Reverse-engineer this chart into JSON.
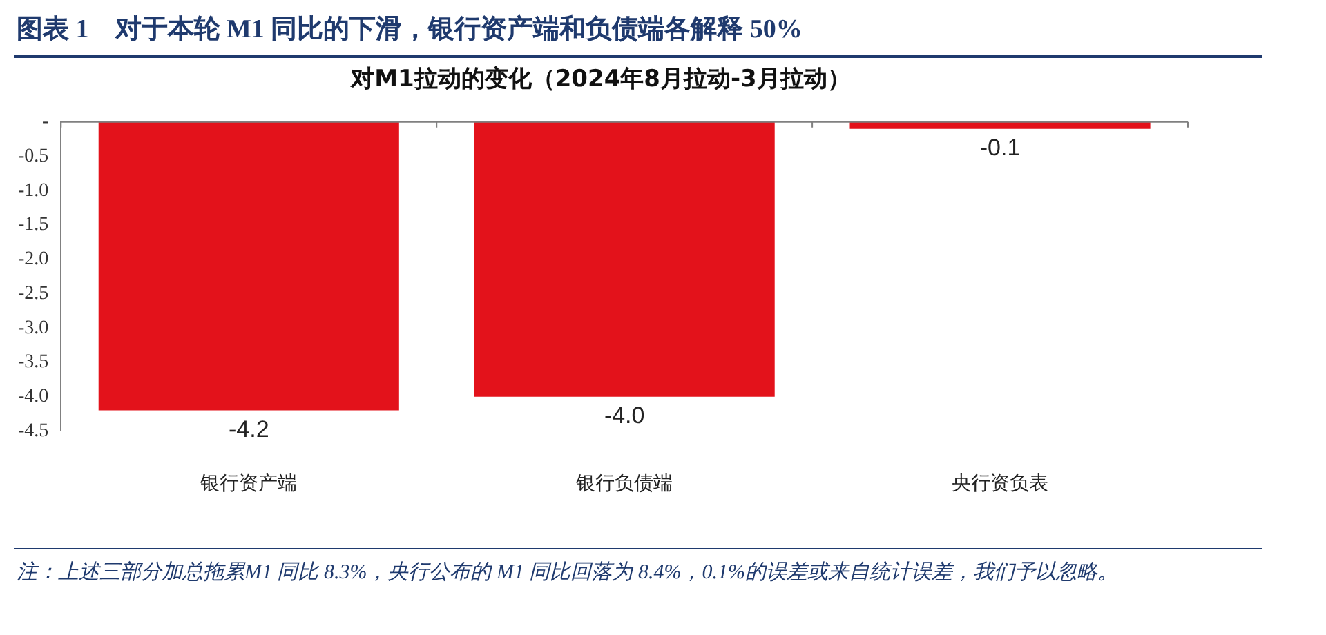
{
  "chart_data": {
    "type": "bar",
    "title": "图表 1　对于本轮 M1 同比的下滑，银行资产端和负债端各解释 50%",
    "subtitle": "对M1拉动的变化（2024年8月拉动-3月拉动）",
    "categories": [
      "银行资产端",
      "银行负债端",
      "央行资负表"
    ],
    "values": [
      -4.2,
      -4.0,
      -0.1
    ],
    "value_labels": [
      "-4.2",
      "-4.0",
      "-0.1"
    ],
    "color": "#e3121b",
    "ylim": [
      -4.5,
      0
    ],
    "yticks": [
      {
        "value": 0,
        "label": "-"
      },
      -0.5,
      {
        "value": -1,
        "label": "-1.0"
      },
      -1.5,
      {
        "value": -2,
        "label": "-2.0"
      },
      -2.5,
      {
        "value": -3,
        "label": "-3.0"
      },
      -3.5,
      {
        "value": -4,
        "label": "-4.0"
      },
      -4.5
    ],
    "grid": false,
    "legend": false,
    "annotations": [
      "注：上述三部分加总拖累M1 同比 8.3%，央行公布的 M1 同比回落为 8.4%，0.1%的误差或来自统计误差，我们予以忽略。"
    ]
  }
}
